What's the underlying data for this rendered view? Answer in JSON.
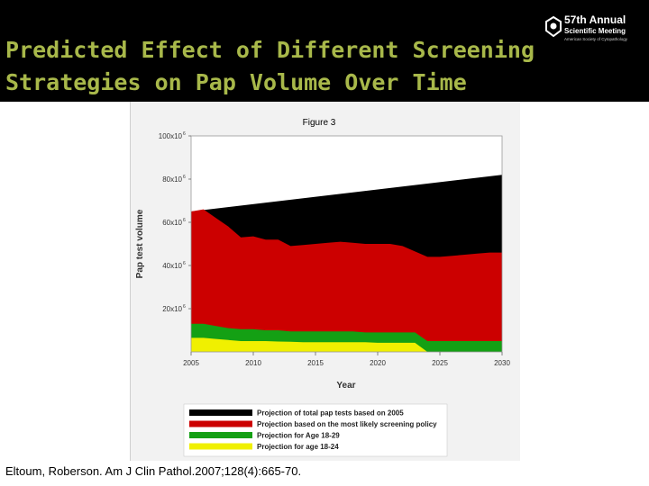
{
  "slide": {
    "title": "Predicted Effect of Different Screening\nStrategies on Pap Volume Over Time",
    "citation": "Eltoum, Roberson. Am J Clin Pathol.2007;128(4):665-70."
  },
  "logo": {
    "line1": "57th Annual",
    "line2": "Scientific Meeting",
    "line3": "American Society of Cytopathology"
  },
  "chart_data": {
    "type": "area",
    "title": "Figure 3",
    "xlabel": "Year",
    "ylabel": "Pap test volume",
    "xlim": [
      2005,
      2030
    ],
    "ylim": [
      0,
      100000000
    ],
    "x_ticks": [
      2005,
      2010,
      2015,
      2020,
      2025,
      2030
    ],
    "y_ticks": [
      {
        "value": 20000000,
        "label": "20x10"
      },
      {
        "value": 40000000,
        "label": "40x10"
      },
      {
        "value": 60000000,
        "label": "60x10"
      },
      {
        "value": 80000000,
        "label": "80x10"
      },
      {
        "value": 100000000,
        "label": "100x10"
      }
    ],
    "y_tick_exponent": "6",
    "grid": false,
    "legend_position": "bottom",
    "series": [
      {
        "name": "Projection of total pap tests based on 2005",
        "color": "#000000",
        "x": [
          2005,
          2030
        ],
        "values": [
          65000000,
          82000000
        ]
      },
      {
        "name": "Projection based on the most  likely screening policy",
        "color": "#cc0000",
        "x": [
          2005,
          2006,
          2007,
          2008,
          2009,
          2010,
          2011,
          2012,
          2013,
          2014,
          2015,
          2016,
          2017,
          2018,
          2019,
          2020,
          2021,
          2022,
          2023,
          2024,
          2025,
          2026,
          2027,
          2028,
          2029,
          2030
        ],
        "values": [
          65000000,
          66000000,
          62000000,
          58000000,
          53000000,
          53500000,
          52000000,
          52000000,
          49000000,
          49500000,
          50000000,
          50500000,
          51000000,
          50500000,
          50000000,
          50000000,
          50000000,
          49000000,
          46500000,
          44000000,
          44000000,
          44500000,
          45000000,
          45500000,
          46000000,
          46000000
        ]
      },
      {
        "name": "Projection for Age 18-29",
        "color": "#14a014",
        "x": [
          2005,
          2006,
          2007,
          2008,
          2009,
          2010,
          2011,
          2012,
          2013,
          2014,
          2015,
          2016,
          2017,
          2018,
          2019,
          2020,
          2021,
          2022,
          2023,
          2024,
          2025,
          2026,
          2027,
          2028,
          2029,
          2030
        ],
        "values": [
          13000000,
          13000000,
          12000000,
          11000000,
          10500000,
          10500000,
          10000000,
          10000000,
          9500000,
          9500000,
          9500000,
          9500000,
          9500000,
          9500000,
          9000000,
          9000000,
          9000000,
          9000000,
          9000000,
          5000000,
          5000000,
          5000000,
          5000000,
          5000000,
          5000000,
          5000000
        ]
      },
      {
        "name": "Projection for age 18-24",
        "color": "#f0f000",
        "x": [
          2005,
          2006,
          2007,
          2008,
          2009,
          2010,
          2011,
          2012,
          2013,
          2014,
          2015,
          2016,
          2017,
          2018,
          2019,
          2020,
          2021,
          2022,
          2023,
          2024,
          2025
        ],
        "values": [
          6500000,
          6500000,
          6000000,
          5500000,
          5000000,
          5000000,
          5000000,
          4800000,
          4700000,
          4500000,
          4500000,
          4500000,
          4500000,
          4500000,
          4500000,
          4200000,
          4200000,
          4200000,
          4200000,
          0,
          0
        ]
      }
    ]
  }
}
